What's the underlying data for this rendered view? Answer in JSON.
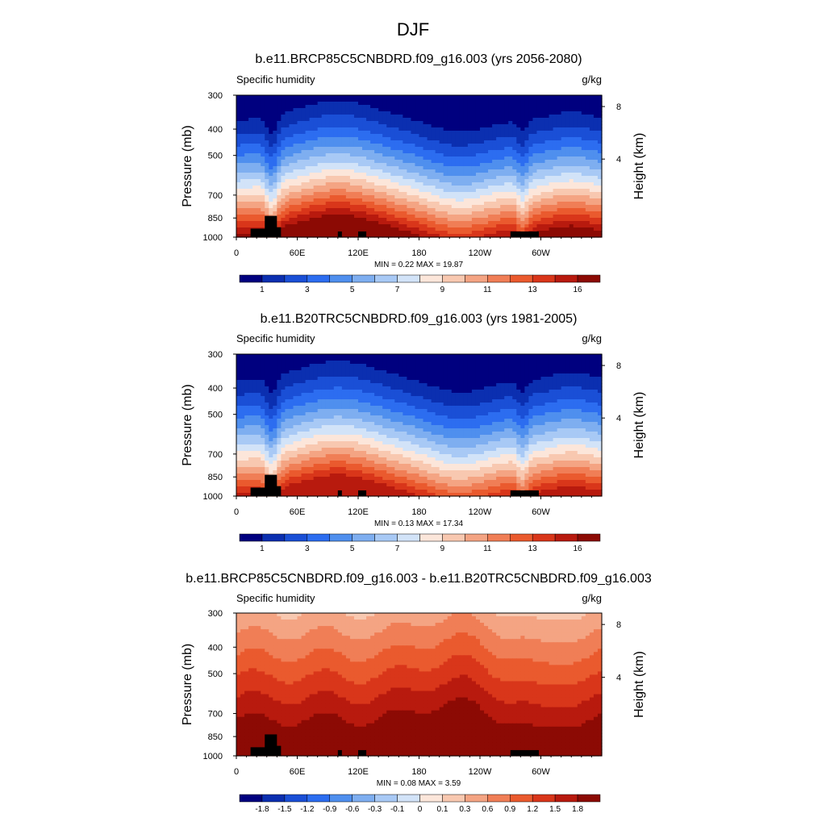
{
  "figure": {
    "title": "DJF"
  },
  "colors": {
    "abs_scale": [
      "#00007f",
      "#0b2fb0",
      "#1a4fd6",
      "#2c6df0",
      "#4f8fee",
      "#7eaef0",
      "#a8c9f5",
      "#d2e3f8",
      "#fce6da",
      "#f8c8b0",
      "#f4a483",
      "#f07e56",
      "#ea5a2e",
      "#d9361a",
      "#b81a0e",
      "#8c0a04"
    ],
    "diff_scale": [
      "#00007f",
      "#0b2fb0",
      "#1a4fd6",
      "#2c6df0",
      "#4f8fee",
      "#7eaef0",
      "#a8c9f5",
      "#d2e3f8",
      "#fce6da",
      "#f8c8b0",
      "#f4a483",
      "#f07e56",
      "#ea5a2e",
      "#d9361a",
      "#b81a0e",
      "#8c0a04"
    ]
  },
  "panels": [
    {
      "title": "b.e11.BRCP85C5CNBDRD.f09_g16.003 (yrs 2056-2080)",
      "left_label": "Specific humidity",
      "right_label": "g/kg",
      "ylabel": "Pressure (mb)",
      "ylabel_right": "Height (km)",
      "y_ticks": [
        "300",
        "400",
        "500",
        "700",
        "850",
        "1000"
      ],
      "y_right_ticks": [
        "8",
        "4"
      ],
      "x_ticks": [
        "0",
        "60E",
        "120E",
        "180",
        "120W",
        "60W"
      ],
      "minmax": "MIN =   0.22  MAX =  19.87",
      "colorbar_labels": [
        "1",
        "3",
        "5",
        "7",
        "9",
        "11",
        "13",
        "16"
      ]
    },
    {
      "title": "b.e11.B20TRC5CNBDRD.f09_g16.003 (yrs 1981-2005)",
      "left_label": "Specific humidity",
      "right_label": "g/kg",
      "ylabel": "Pressure (mb)",
      "ylabel_right": "Height (km)",
      "y_ticks": [
        "300",
        "400",
        "500",
        "700",
        "850",
        "1000"
      ],
      "y_right_ticks": [
        "8",
        "4"
      ],
      "x_ticks": [
        "0",
        "60E",
        "120E",
        "180",
        "120W",
        "60W"
      ],
      "minmax": "MIN =   0.13  MAX =  17.34",
      "colorbar_labels": [
        "1",
        "3",
        "5",
        "7",
        "9",
        "11",
        "13",
        "16"
      ]
    },
    {
      "title": "b.e11.BRCP85C5CNBDRD.f09_g16.003 - b.e11.B20TRC5CNBDRD.f09_g16.003",
      "left_label": "Specific humidity",
      "right_label": "g/kg",
      "ylabel": "Pressure (mb)",
      "ylabel_right": "Height (km)",
      "y_ticks": [
        "300",
        "400",
        "500",
        "700",
        "850",
        "1000"
      ],
      "y_right_ticks": [
        "8",
        "4"
      ],
      "x_ticks": [
        "0",
        "60E",
        "120E",
        "180",
        "120W",
        "60W"
      ],
      "minmax": "MIN =   0.08  MAX =   3.59",
      "colorbar_labels": [
        "-1.8",
        "-1.5",
        "-1.2",
        "-0.9",
        "-0.6",
        "-0.3",
        "-0.1",
        "0",
        "0.1",
        "0.3",
        "0.6",
        "0.9",
        "1.2",
        "1.5",
        "1.8"
      ]
    }
  ],
  "chart_data": [
    {
      "type": "heatmap",
      "title": "b.e11.BRCP85C5CNBDRD.f09_g16.003 (yrs 2056-2080)",
      "variable": "Specific humidity",
      "units": "g/kg",
      "xlabel": "",
      "ylabel": "Pressure (mb)",
      "ylabel_right": "Height (km)",
      "x_ticks": [
        "0",
        "60E",
        "120E",
        "180",
        "120W",
        "60W"
      ],
      "y_ticks": [
        300,
        400,
        500,
        700,
        850,
        1000
      ],
      "y_right_ticks": [
        8,
        4
      ],
      "ylim": [
        1000,
        300
      ],
      "xlim": [
        0,
        360
      ],
      "min": 0.22,
      "max": 19.87,
      "levels": [
        1,
        2,
        3,
        4,
        5,
        6,
        7,
        8,
        9,
        10,
        11,
        12,
        13,
        14,
        16
      ],
      "colorbar_labels": [
        1,
        3,
        5,
        7,
        9,
        11,
        13,
        16
      ],
      "terrain_black_longitudes": [
        [
          10,
          45
        ],
        [
          275,
          300
        ]
      ]
    },
    {
      "type": "heatmap",
      "title": "b.e11.B20TRC5CNBDRD.f09_g16.003 (yrs 1981-2005)",
      "variable": "Specific humidity",
      "units": "g/kg",
      "xlabel": "",
      "ylabel": "Pressure (mb)",
      "ylabel_right": "Height (km)",
      "x_ticks": [
        "0",
        "60E",
        "120E",
        "180",
        "120W",
        "60W"
      ],
      "y_ticks": [
        300,
        400,
        500,
        700,
        850,
        1000
      ],
      "y_right_ticks": [
        8,
        4
      ],
      "ylim": [
        1000,
        300
      ],
      "xlim": [
        0,
        360
      ],
      "min": 0.13,
      "max": 17.34,
      "levels": [
        1,
        2,
        3,
        4,
        5,
        6,
        7,
        8,
        9,
        10,
        11,
        12,
        13,
        14,
        16
      ],
      "colorbar_labels": [
        1,
        3,
        5,
        7,
        9,
        11,
        13,
        16
      ],
      "terrain_black_longitudes": [
        [
          10,
          45
        ],
        [
          275,
          300
        ]
      ]
    },
    {
      "type": "heatmap",
      "title": "b.e11.BRCP85C5CNBDRD.f09_g16.003 - b.e11.B20TRC5CNBDRD.f09_g16.003",
      "variable": "Specific humidity",
      "units": "g/kg",
      "xlabel": "",
      "ylabel": "Pressure (mb)",
      "ylabel_right": "Height (km)",
      "x_ticks": [
        "0",
        "60E",
        "120E",
        "180",
        "120W",
        "60W"
      ],
      "y_ticks": [
        300,
        400,
        500,
        700,
        850,
        1000
      ],
      "y_right_ticks": [
        8,
        4
      ],
      "ylim": [
        1000,
        300
      ],
      "xlim": [
        0,
        360
      ],
      "min": 0.08,
      "max": 3.59,
      "levels": [
        -1.8,
        -1.5,
        -1.2,
        -0.9,
        -0.6,
        -0.3,
        -0.1,
        0,
        0.1,
        0.3,
        0.6,
        0.9,
        1.2,
        1.5,
        1.8
      ],
      "colorbar_labels": [
        -1.8,
        -1.5,
        -1.2,
        -0.9,
        -0.6,
        -0.3,
        -0.1,
        0,
        0.1,
        0.3,
        0.6,
        0.9,
        1.2,
        1.5,
        1.8
      ],
      "terrain_black_longitudes": [
        [
          10,
          45
        ],
        [
          275,
          300
        ]
      ]
    }
  ]
}
